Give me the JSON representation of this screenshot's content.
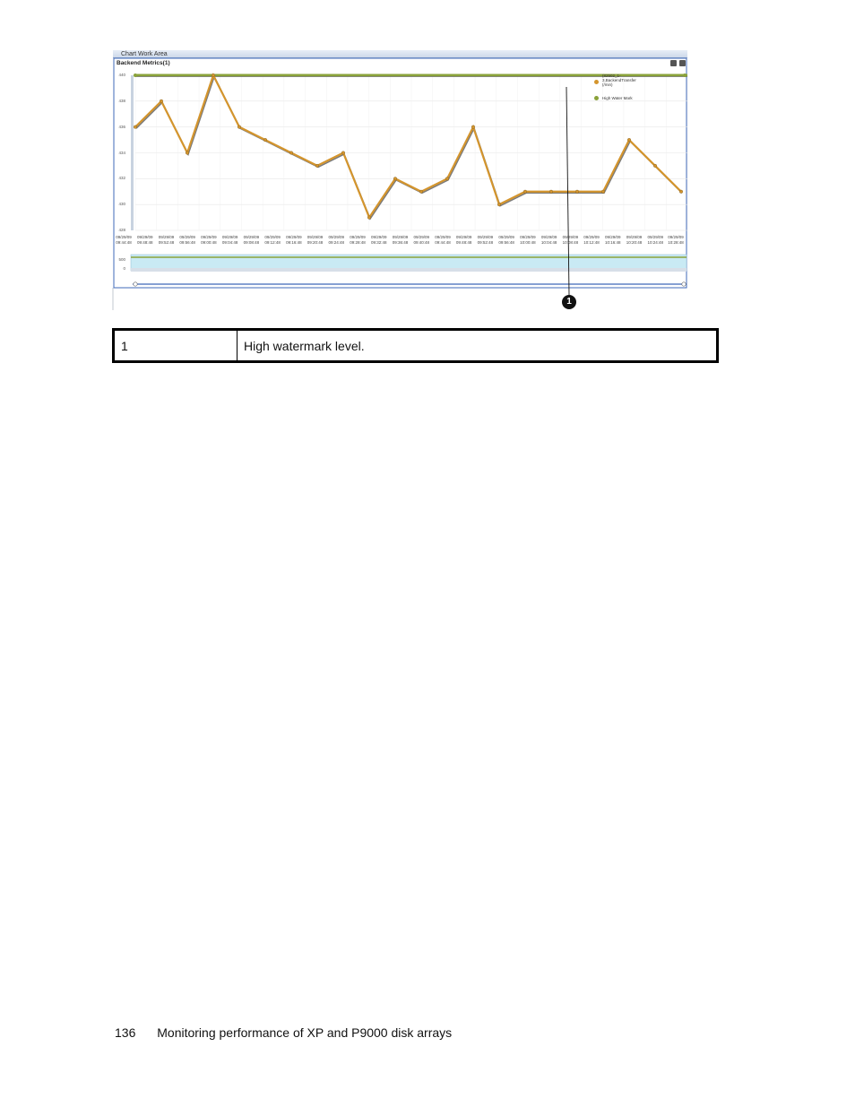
{
  "figure": {
    "window_title": "Chart Work Area",
    "chart_title": "Backend Metrics(1)",
    "toolbar_icons": [
      "minimize-icon",
      "close-icon"
    ],
    "legend": {
      "series_label_line1": "(82502_1-",
      "series_label_line2": "3,BackendTransfer",
      "series_label_line3": "(/min)",
      "watermark_label": "High Water Mark"
    },
    "colors": {
      "series": "#d4952d",
      "series_shadow": "#7a7a7a",
      "watermark": "#8aa23a",
      "plot_background": "#ffffff",
      "grid": "#e6e6e6",
      "overview_fill": "#c9eaf4",
      "frame": "#3f68b8"
    },
    "overview_ticks": [
      "500",
      "0"
    ],
    "callout": "1"
  },
  "chart_data": {
    "type": "line",
    "title": "Backend Metrics(1)",
    "y_ticks": [
      "440",
      "438",
      "436",
      "434",
      "432",
      "430",
      "428"
    ],
    "ylim": [
      428,
      440
    ],
    "x_dates": [
      "09/29/09",
      "09/29/09",
      "09/29/09",
      "09/29/09",
      "09/29/09",
      "09/29/09",
      "09/29/09",
      "09/29/09",
      "09/29/09",
      "09/29/09",
      "09/29/09",
      "09/29/09",
      "09/29/09",
      "09/29/09",
      "09/29/09",
      "09/29/09",
      "09/29/09",
      "09/29/09",
      "09/29/09",
      "09/29/09",
      "09/29/09",
      "09/29/09",
      "09/29/09",
      "09/29/09",
      "09/29/09",
      "09/29/09",
      "09/29/09"
    ],
    "x_times": [
      "09:44:48",
      "09:48:48",
      "09:52:48",
      "09:56:48",
      "09:00:48",
      "09:04:48",
      "09:08:48",
      "09:12:48",
      "09:16:48",
      "09:20:48",
      "09:24:48",
      "09:28:48",
      "09:32:48",
      "09:36:48",
      "09:40:48",
      "09:44:48",
      "09:48:48",
      "09:52:48",
      "09:56:48",
      "10:00:48",
      "10:04:48",
      "10:08:48",
      "10:12:48",
      "10:16:48",
      "10:20:48",
      "10:24:48",
      "10:28:48"
    ],
    "series": [
      {
        "name": "(82502_1-3,BackendTransfer (/min)",
        "values": [
          436,
          438,
          434,
          440,
          436,
          435,
          434,
          433,
          434,
          429,
          432,
          431,
          432,
          436,
          430,
          431,
          431,
          431,
          431,
          435,
          433,
          431
        ]
      },
      {
        "name": "High Water Mark",
        "values": [
          440,
          440
        ]
      }
    ],
    "watermark_value": 440,
    "grid": true,
    "legend_position": "top-right"
  },
  "legend_table": {
    "rows": [
      {
        "number": "1",
        "description": "High watermark level."
      }
    ]
  },
  "footer": {
    "page_number": "136",
    "section_title": "Monitoring performance of XP and P9000 disk arrays"
  }
}
